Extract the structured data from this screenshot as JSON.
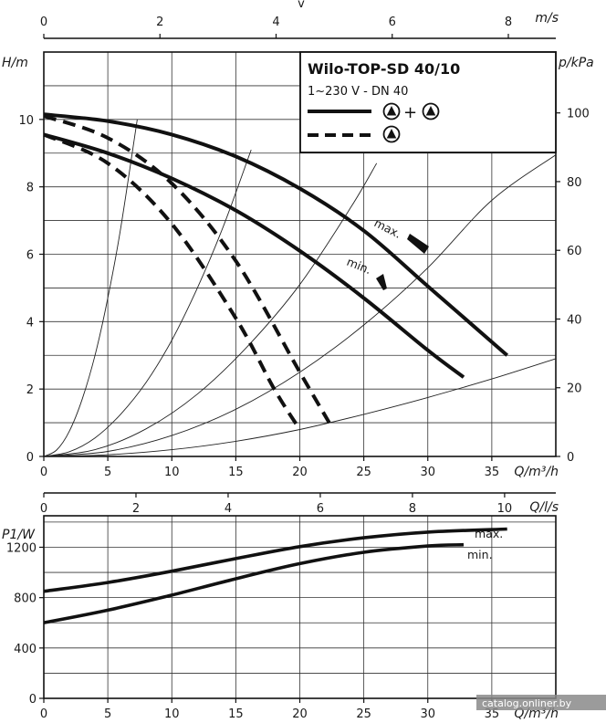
{
  "chart_data": [
    {
      "type": "line",
      "title": "Wilo-TOP-SD 40/10",
      "subtitle": "1~230 V - DN 40",
      "xlabel": "Q/m³/h",
      "ylabel": "H/m",
      "y2label": "p/kPa",
      "top_axis_label": "m/s",
      "top_axis_letter": "v",
      "xlim": [
        0,
        40
      ],
      "ylim": [
        0,
        12
      ],
      "x_ticks": [
        "0",
        "5",
        "10",
        "15",
        "20",
        "25",
        "30",
        "35"
      ],
      "y_ticks": [
        "0",
        "2",
        "4",
        "6",
        "8",
        "10"
      ],
      "y2_ticks": [
        "0",
        "20",
        "40",
        "60",
        "80",
        "100"
      ],
      "top_ticks": [
        "0",
        "2",
        "4",
        "6",
        "8"
      ],
      "grid": true,
      "legend": {
        "position": "top-right",
        "entries": [
          {
            "style": "solid",
            "symbol": "pump-symbol + pump-symbol"
          },
          {
            "style": "dashed",
            "symbol": "pump-symbol"
          }
        ]
      },
      "series": [
        {
          "style": "solid",
          "label": "max.",
          "x": [
            0,
            5,
            10,
            15,
            20,
            25,
            30,
            36.2
          ],
          "y": [
            10.15,
            9.95,
            9.55,
            8.9,
            7.95,
            6.7,
            5.05,
            3.0
          ]
        },
        {
          "style": "solid",
          "label": "min.",
          "x": [
            0,
            5,
            10,
            15,
            20,
            25,
            30,
            32.8
          ],
          "y": [
            9.55,
            9.0,
            8.25,
            7.3,
            6.1,
            4.7,
            3.15,
            2.35
          ]
        },
        {
          "style": "dashed",
          "x": [
            0,
            5,
            10,
            15,
            20,
            22.3
          ],
          "y": [
            10.1,
            9.45,
            8.1,
            5.8,
            2.5,
            1.0
          ]
        },
        {
          "style": "dashed",
          "x": [
            0,
            5,
            10,
            15,
            18,
            20
          ],
          "y": [
            9.55,
            8.7,
            6.9,
            4.1,
            2.0,
            0.8
          ]
        }
      ],
      "system_curves": [
        {
          "x": [
            0,
            1,
            2,
            3,
            4,
            5,
            6,
            7.3
          ],
          "y": [
            0,
            0.19,
            0.75,
            1.7,
            3.0,
            4.7,
            6.75,
            10.0
          ]
        },
        {
          "x": [
            0,
            2,
            4,
            6,
            8,
            10,
            12,
            14,
            16.2
          ],
          "y": [
            0,
            0.14,
            0.55,
            1.25,
            2.2,
            3.45,
            5.0,
            6.8,
            9.1
          ]
        },
        {
          "x": [
            0,
            4,
            8,
            12,
            16,
            20,
            24,
            26
          ],
          "y": [
            0,
            0.2,
            0.82,
            1.85,
            3.3,
            5.1,
            7.4,
            8.7
          ]
        },
        {
          "x": [
            0,
            5,
            10,
            15,
            20,
            25,
            30,
            35,
            40
          ],
          "y": [
            0,
            0.15,
            0.62,
            1.4,
            2.5,
            3.9,
            5.6,
            7.6,
            8.95
          ]
        },
        {
          "x": [
            0,
            5,
            10,
            15,
            20,
            25,
            30,
            35,
            40
          ],
          "y": [
            0,
            0.05,
            0.2,
            0.45,
            0.8,
            1.25,
            1.75,
            2.3,
            2.9
          ]
        }
      ]
    },
    {
      "type": "line",
      "xlabel": "Q/m³/h",
      "ylabel": "P1/W",
      "top_axis_label": "Q/l/s",
      "xlim": [
        0,
        40
      ],
      "ylim": [
        0,
        1450
      ],
      "x_ticks": [
        "0",
        "5",
        "10",
        "15",
        "20",
        "25",
        "30",
        "35"
      ],
      "y_ticks": [
        "0",
        "400",
        "800",
        "1200"
      ],
      "top_ticks": [
        "0",
        "2",
        "4",
        "6",
        "8",
        "10"
      ],
      "grid": true,
      "series": [
        {
          "label": "max.",
          "x": [
            0,
            5,
            10,
            15,
            20,
            25,
            30,
            36.2
          ],
          "y": [
            850,
            920,
            1010,
            1110,
            1205,
            1275,
            1320,
            1345
          ]
        },
        {
          "label": "min.",
          "x": [
            0,
            5,
            10,
            15,
            20,
            25,
            30,
            32.8
          ],
          "y": [
            600,
            700,
            820,
            950,
            1070,
            1160,
            1210,
            1220
          ]
        }
      ]
    }
  ],
  "watermark": "catalog.onliner.by"
}
